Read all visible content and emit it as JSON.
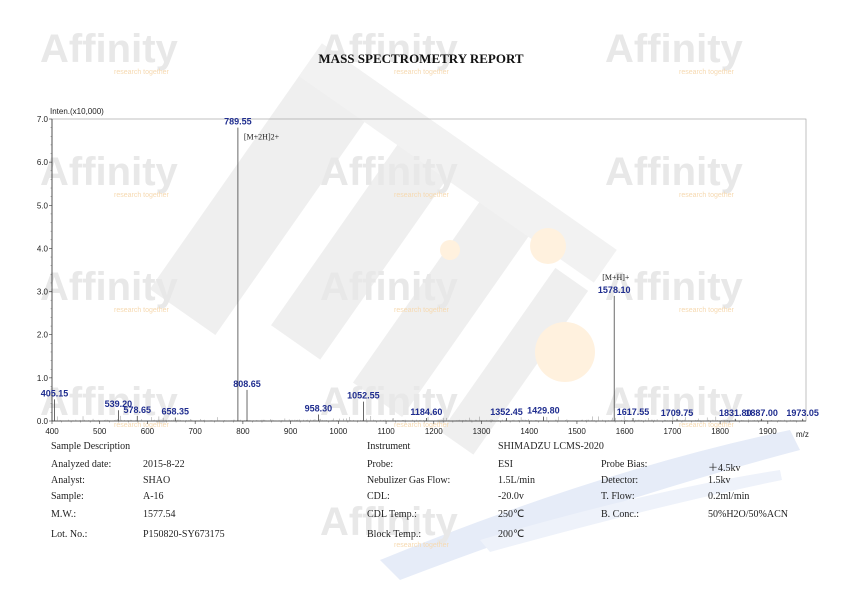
{
  "report_title": "MASS SPECTROMETRY REPORT",
  "watermark": {
    "brand": "Affinity",
    "tagline": "research together"
  },
  "colors": {
    "peak_label": "#1f2d8f",
    "axis": "#333333",
    "watermark_gray": "#e8e8e8",
    "watermark_orange": "#fff1de",
    "watermark_blue": "#e6ecf8"
  },
  "chart_data": {
    "type": "bar",
    "title": "",
    "ylabel": "Inten.(x10,000)",
    "xlabel": "m/z",
    "xlim": [
      400,
      1980
    ],
    "ylim": [
      0,
      7.0
    ],
    "x_ticks": [
      400,
      500,
      600,
      700,
      800,
      900,
      1000,
      1100,
      1200,
      1300,
      1400,
      1500,
      1600,
      1700,
      1800,
      1900
    ],
    "y_ticks": [
      "0.0",
      "1.0",
      "2.0",
      "3.0",
      "4.0",
      "5.0",
      "6.0",
      "7.0"
    ],
    "peaks": [
      {
        "mz": 405.15,
        "intensity": 0.5,
        "label": "405.15"
      },
      {
        "mz": 539.2,
        "intensity": 0.25,
        "label": "539.20"
      },
      {
        "mz": 578.65,
        "intensity": 0.12,
        "label": "578.65"
      },
      {
        "mz": 658.35,
        "intensity": 0.08,
        "label": "658.35"
      },
      {
        "mz": 789.55,
        "intensity": 6.8,
        "label": "789.55"
      },
      {
        "mz": 808.65,
        "intensity": 0.72,
        "label": "808.65"
      },
      {
        "mz": 958.3,
        "intensity": 0.15,
        "label": "958.30"
      },
      {
        "mz": 1052.55,
        "intensity": 0.45,
        "label": "1052.55"
      },
      {
        "mz": 1184.6,
        "intensity": 0.07,
        "label": "1184.60"
      },
      {
        "mz": 1352.45,
        "intensity": 0.07,
        "label": "1352.45"
      },
      {
        "mz": 1429.8,
        "intensity": 0.1,
        "label": "1429.80"
      },
      {
        "mz": 1578.1,
        "intensity": 2.9,
        "label": "1578.10"
      },
      {
        "mz": 1617.55,
        "intensity": 0.07,
        "label": "1617.55"
      },
      {
        "mz": 1709.75,
        "intensity": 0.05,
        "label": "1709.75"
      },
      {
        "mz": 1831.8,
        "intensity": 0.05,
        "label": "1831.80"
      },
      {
        "mz": 1887.0,
        "intensity": 0.05,
        "label": "1887.00"
      },
      {
        "mz": 1973.05,
        "intensity": 0.05,
        "label": "1973.05"
      }
    ],
    "annotations": [
      {
        "text": "[M+2H]2+",
        "mz": 789.55
      },
      {
        "text": "[M+H]+",
        "mz": 1578.1
      }
    ]
  },
  "info_left": [
    {
      "label": "Sample Description",
      "value": ""
    },
    {
      "label": "Analyzed date:",
      "value": "2015-8-22"
    },
    {
      "label": "Analyst:",
      "value": "SHAO"
    },
    {
      "label": "Sample:",
      "value": "A-16"
    },
    {
      "label": "M.W.:",
      "value": "1577.54"
    },
    {
      "label": "Lot. No.:",
      "value": "P150820-SY673175"
    }
  ],
  "info_mid": [
    {
      "label": "Instrument",
      "value": "SHIMADZU LCMS-2020"
    },
    {
      "label": "Probe:",
      "value": "ESI"
    },
    {
      "label": "Nebulizer Gas Flow:",
      "value": "1.5L/min"
    },
    {
      "label": "CDL:",
      "value": "-20.0v"
    },
    {
      "label": "CDL Temp.:",
      "value": "250℃"
    },
    {
      "label": "Block Temp.:",
      "value": "200℃"
    }
  ],
  "info_right": [
    {
      "label": "Probe Bias:",
      "value": "＋4.5kv"
    },
    {
      "label": "Detector:",
      "value": "1.5kv"
    },
    {
      "label": "T. Flow:",
      "value": "0.2ml/min"
    },
    {
      "label": "B. Conc.:",
      "value": "50%H2O/50%ACN"
    }
  ]
}
